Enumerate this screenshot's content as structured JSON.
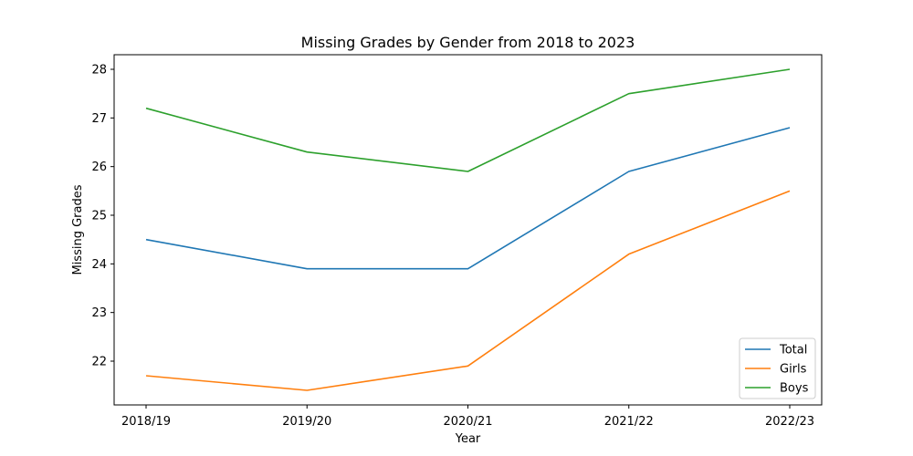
{
  "chart_data": {
    "type": "line",
    "title": "Missing Grades by Gender from 2018 to 2023",
    "xlabel": "Year",
    "ylabel": "Missing Grades",
    "categories": [
      "2018/19",
      "2019/20",
      "2020/21",
      "2021/22",
      "2022/23"
    ],
    "series": [
      {
        "name": "Total",
        "color": "#1f77b4",
        "values": [
          24.5,
          23.9,
          23.9,
          25.9,
          26.8
        ]
      },
      {
        "name": "Girls",
        "color": "#ff7f0e",
        "values": [
          21.7,
          21.4,
          21.9,
          24.2,
          25.5
        ]
      },
      {
        "name": "Boys",
        "color": "#2ca02c",
        "values": [
          27.2,
          26.3,
          25.9,
          27.5,
          28.0
        ]
      }
    ],
    "ylim": [
      21.1,
      28.3
    ],
    "yticks": [
      22,
      23,
      24,
      25,
      26,
      27,
      28
    ],
    "grid": false,
    "legend_position": "lower right"
  }
}
